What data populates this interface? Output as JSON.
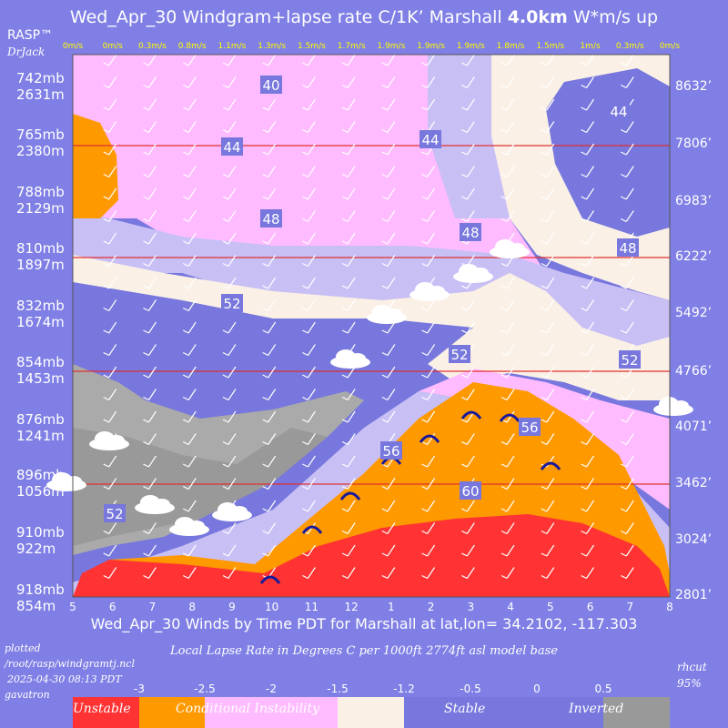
{
  "header": {
    "title_main": "Wed_Apr_30 Windgram+lapse rate C/1K’  Marshall ",
    "title_bold": "4.0km",
    "title_tail": "  W*m/s up",
    "brand": "RASP™",
    "author": "DrJack"
  },
  "chart_data": {
    "type": "heatmap",
    "subtitle": "Wed_Apr_30 Winds by Time PDT for Marshall at lat,lon= 34.2102, -117.303",
    "x_ticks": [
      "5",
      "6",
      "7",
      "8",
      "9",
      "10",
      "11",
      "12",
      "1",
      "2",
      "3",
      "4",
      "5",
      "6",
      "7",
      "8"
    ],
    "top_updraft_labels": [
      "0m/s",
      "0m/s",
      "0.3m/s",
      "0.8m/s",
      "1.1m/s",
      "1.3m/s",
      "1.5m/s",
      "1.7m/s",
      "1.9m/s",
      "1.9m/s",
      "1.9m/s",
      "1.8m/s",
      "1.5m/s",
      "1m/s",
      "0.3m/s",
      "0m/s"
    ],
    "y_left_ticks": [
      {
        "mb": "742mb",
        "m": "2631m"
      },
      {
        "mb": "765mb",
        "m": "2380m"
      },
      {
        "mb": "788mb",
        "m": "2129m"
      },
      {
        "mb": "810mb",
        "m": "1897m"
      },
      {
        "mb": "832mb",
        "m": "1674m"
      },
      {
        "mb": "854mb",
        "m": "1453m"
      },
      {
        "mb": "876mb",
        "m": "1241m"
      },
      {
        "mb": "896mb",
        "m": "1056m"
      },
      {
        "mb": "910mb",
        "m": "922m"
      },
      {
        "mb": "918mb",
        "m": "854m"
      }
    ],
    "y_right_ticks": [
      "8632’",
      "7806’",
      "6983’",
      "6222’",
      "5492’",
      "4766’",
      "4071’",
      "3462’",
      "3024’",
      "2801’"
    ],
    "contour_labels": [
      "40",
      "44",
      "44",
      "44",
      "48",
      "48",
      "48",
      "52",
      "52",
      "52",
      "52",
      "56",
      "56",
      "60"
    ],
    "legend": {
      "title": "Local Lapse Rate in Degrees C per 1000ft  2774ft asl model base",
      "values": [
        "-3",
        "-2.5",
        "-2",
        "-1.5",
        "-1.2",
        "-0.5",
        "0",
        "0.5"
      ],
      "categories": [
        "Unstable",
        "Conditional Instability",
        "Stable",
        "Inverted"
      ],
      "colors": [
        "#ff3333",
        "#ff9900",
        "#ffbbff",
        "#faf0e6",
        "#7777dd",
        "#bbbbbb",
        "#999999"
      ]
    }
  },
  "footer": {
    "plotted": "plotted",
    "script_path": "/root/rasp/windgramtj.ncl",
    "timestamp": "2025-04-30 08:13 PDT",
    "user": "gavatron",
    "rh_label": "rhcut",
    "rh_value": "95%"
  }
}
